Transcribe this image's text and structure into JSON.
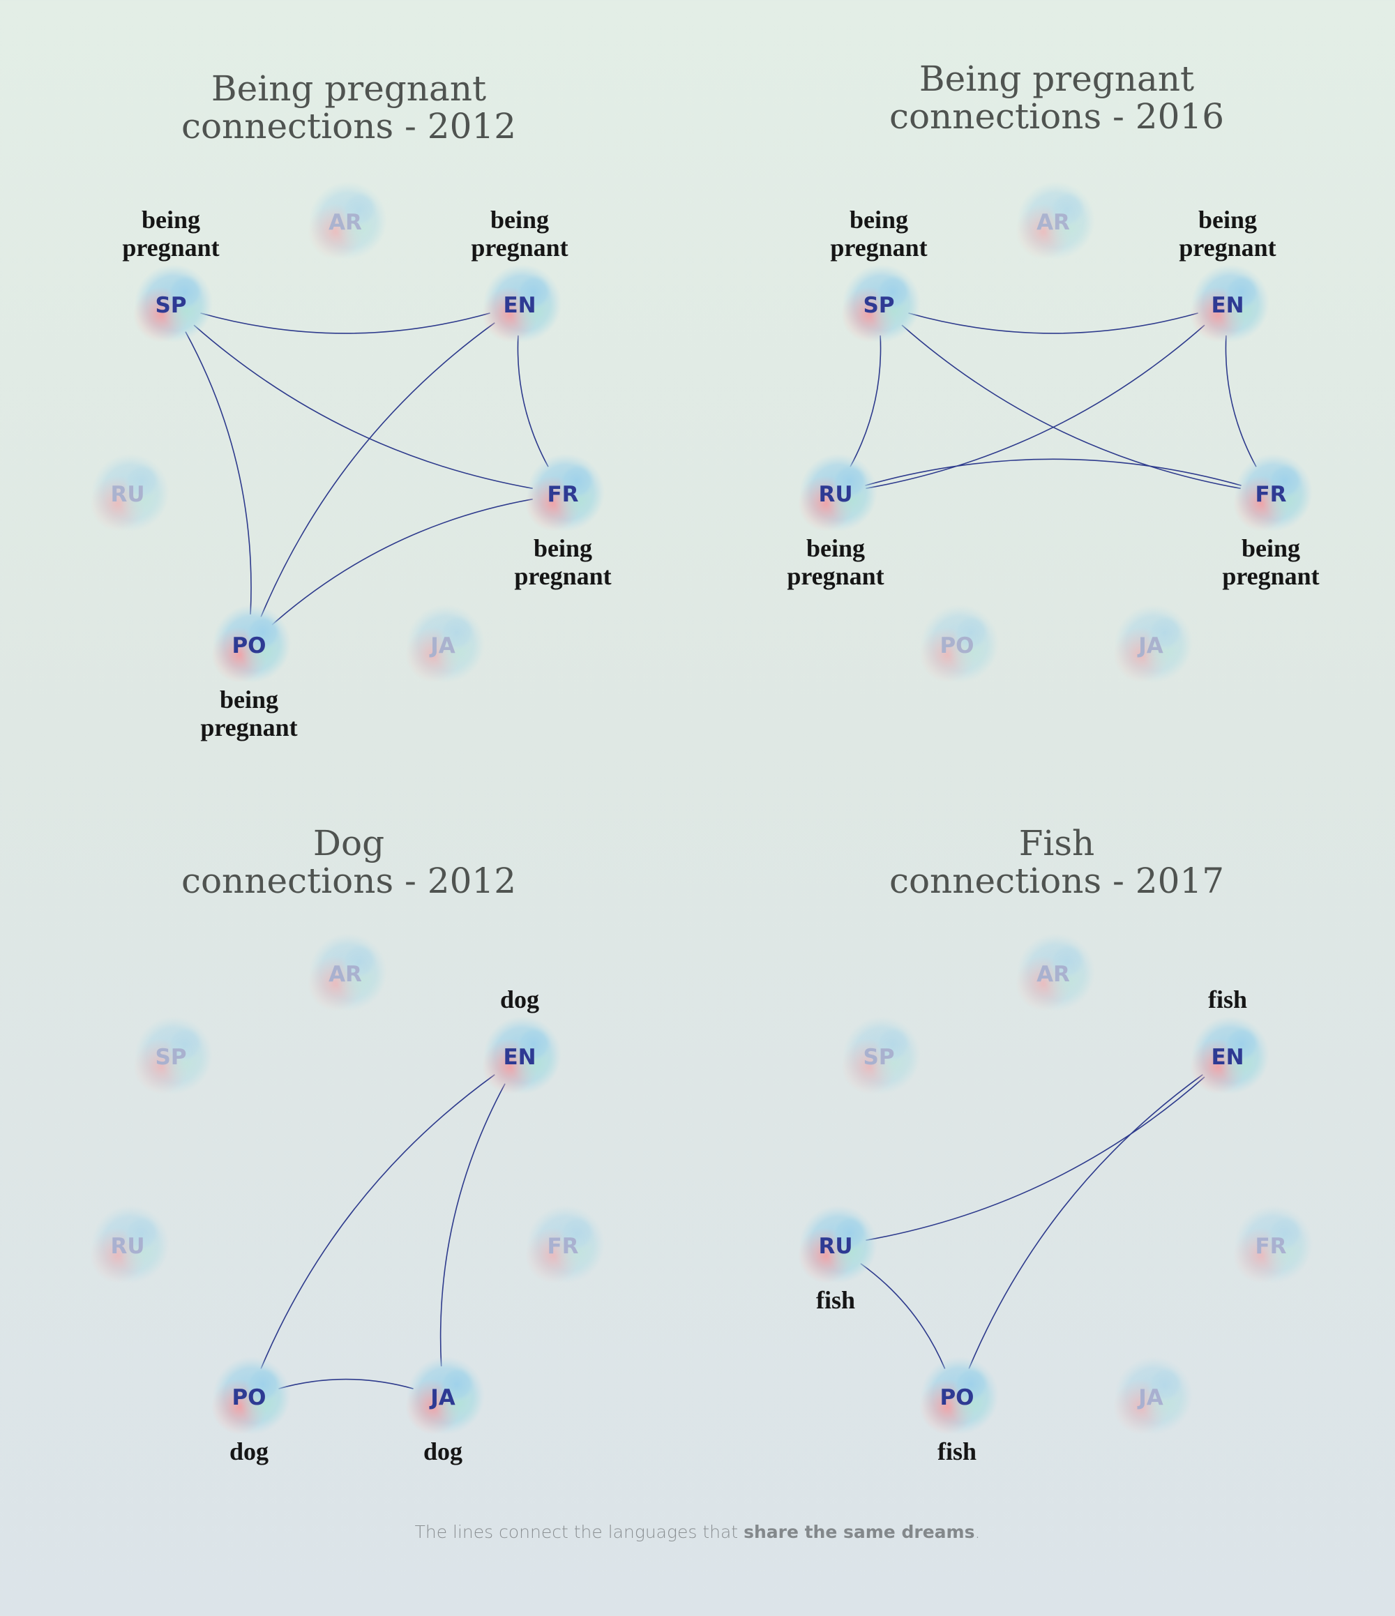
{
  "colors": {
    "edge": "#2d3a8c",
    "node_active_text": "#2e3a93",
    "node_faded_text": "#8a91c2",
    "title": "#4f5350",
    "word": "#151515"
  },
  "panels": [
    {
      "title_line1": "Being pregnant",
      "title_line2": "connections - 2012",
      "nodes": [
        {
          "code": "AR",
          "active": false
        },
        {
          "code": "SP",
          "active": true,
          "word": "being pregnant"
        },
        {
          "code": "EN",
          "active": true,
          "word": "being pregnant"
        },
        {
          "code": "RU",
          "active": false
        },
        {
          "code": "FR",
          "active": true,
          "word": "being pregnant"
        },
        {
          "code": "PO",
          "active": true,
          "word": "being pregnant"
        },
        {
          "code": "JA",
          "active": false
        }
      ],
      "edges": [
        [
          "SP",
          "EN"
        ],
        [
          "SP",
          "FR"
        ],
        [
          "SP",
          "PO"
        ],
        [
          "EN",
          "FR"
        ],
        [
          "EN",
          "PO"
        ],
        [
          "FR",
          "PO"
        ]
      ]
    },
    {
      "title_line1": "Being pregnant",
      "title_line2": "connections - 2016",
      "nodes": [
        {
          "code": "AR",
          "active": false
        },
        {
          "code": "SP",
          "active": true,
          "word": "being pregnant"
        },
        {
          "code": "EN",
          "active": true,
          "word": "being pregnant"
        },
        {
          "code": "RU",
          "active": true,
          "word": "being pregnant"
        },
        {
          "code": "FR",
          "active": true,
          "word": "being pregnant"
        },
        {
          "code": "PO",
          "active": false
        },
        {
          "code": "JA",
          "active": false
        }
      ],
      "edges": [
        [
          "SP",
          "EN"
        ],
        [
          "SP",
          "FR"
        ],
        [
          "SP",
          "RU"
        ],
        [
          "EN",
          "RU"
        ],
        [
          "EN",
          "FR"
        ],
        [
          "RU",
          "FR"
        ]
      ]
    },
    {
      "title_line1": "Dog",
      "title_line2": "connections - 2012",
      "nodes": [
        {
          "code": "AR",
          "active": false
        },
        {
          "code": "SP",
          "active": false
        },
        {
          "code": "EN",
          "active": true,
          "word": "dog"
        },
        {
          "code": "RU",
          "active": false
        },
        {
          "code": "FR",
          "active": false
        },
        {
          "code": "PO",
          "active": true,
          "word": "dog"
        },
        {
          "code": "JA",
          "active": true,
          "word": "dog"
        }
      ],
      "edges": [
        [
          "EN",
          "PO"
        ],
        [
          "EN",
          "JA"
        ],
        [
          "PO",
          "JA"
        ]
      ]
    },
    {
      "title_line1": "Fish",
      "title_line2": "connections - 2017",
      "nodes": [
        {
          "code": "AR",
          "active": false
        },
        {
          "code": "SP",
          "active": false
        },
        {
          "code": "EN",
          "active": true,
          "word": "fish"
        },
        {
          "code": "RU",
          "active": true,
          "word": "fish"
        },
        {
          "code": "FR",
          "active": false
        },
        {
          "code": "PO",
          "active": true,
          "word": "fish"
        },
        {
          "code": "JA",
          "active": false
        }
      ],
      "edges": [
        [
          "EN",
          "RU"
        ],
        [
          "EN",
          "PO"
        ],
        [
          "RU",
          "PO"
        ]
      ]
    }
  ],
  "footer": {
    "text_before": "The lines connect the languages that ",
    "text_bold": "share the same dreams",
    "text_after": "."
  }
}
